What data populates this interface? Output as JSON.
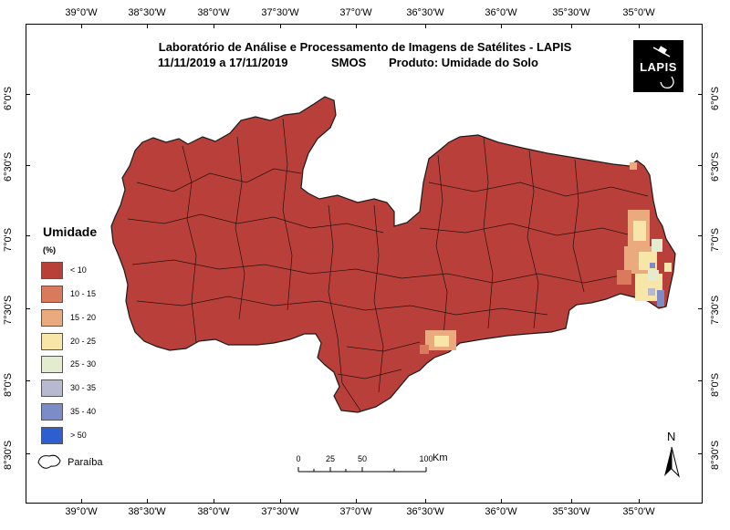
{
  "title": "Laboratório de Análise e Processamento de Imagens de Satélites - LAPIS",
  "subtitle": {
    "dates": "11/11/2019  a  17/11/2019",
    "sensor": "SMOS",
    "product": "Produto: Umidade do Solo"
  },
  "logo": {
    "text": "LAPIS"
  },
  "longitude_ticks": [
    "39°0'W",
    "38°30'W",
    "38°0'W",
    "37°30'W",
    "37°0'W",
    "36°30'W",
    "36°0'W",
    "35°30'W",
    "35°0'W"
  ],
  "latitude_ticks": [
    "6°0'S",
    "6°30'S",
    "7°0'S",
    "7°30'S",
    "8°0'S",
    "8°30'S"
  ],
  "legend": {
    "title": "Umidade",
    "unit": "(%)",
    "items": [
      {
        "label": "< 10",
        "color": "#b9403a"
      },
      {
        "label": "10 - 15",
        "color": "#d97a5c"
      },
      {
        "label": "15 - 20",
        "color": "#ebaa7e"
      },
      {
        "label": "20 - 25",
        "color": "#f8e6a8"
      },
      {
        "label": "25 - 30",
        "color": "#e4ebcf"
      },
      {
        "label": "30 - 35",
        "color": "#b7b9d1"
      },
      {
        "label": "35 - 40",
        "color": "#7b8cc9"
      },
      {
        "label": "> 50",
        "color": "#2e5fd0"
      }
    ]
  },
  "boundary_label": "Paraíba",
  "scale_bar": {
    "ticks": [
      "0",
      "25",
      "50",
      "100"
    ],
    "unit": "Km"
  },
  "north_label": "N",
  "map_colors": {
    "base": "#b9403a",
    "border": "#1a1a1a"
  }
}
